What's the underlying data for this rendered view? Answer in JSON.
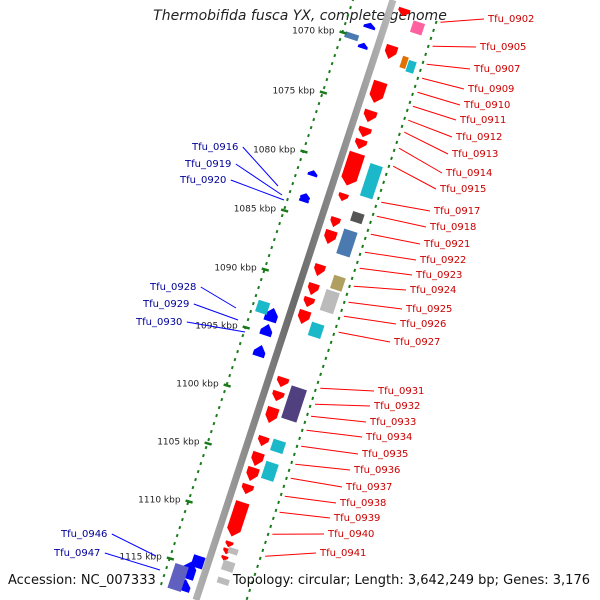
{
  "title": "Thermobifida fusca YX, complete genome",
  "accession_text": "Accession: NC_007333",
  "summary_text": "Topology: circular; Length: 3,642,249 bp; Genes: 3,176",
  "colors": {
    "backbone": "#888888",
    "tick": "#1a7a1a",
    "forward_gene": "#ff0000",
    "reverse_gene": "#0000ff",
    "right_label": "#cc0000",
    "left_label": "#000099"
  },
  "ruler_labels": [
    "1070 kbp",
    "1075 kbp",
    "1080 kbp",
    "1085 kbp",
    "1090 kbp",
    "1095 kbp",
    "1100 kbp",
    "1105 kbp",
    "1110 kbp",
    "1115 kbp"
  ],
  "right_genes": [
    "Tfu_0902",
    "Tfu_0905",
    "Tfu_0907",
    "Tfu_0909",
    "Tfu_0910",
    "Tfu_0911",
    "Tfu_0912",
    "Tfu_0913",
    "Tfu_0914",
    "Tfu_0915",
    "Tfu_0917",
    "Tfu_0918",
    "Tfu_0921",
    "Tfu_0922",
    "Tfu_0923",
    "Tfu_0924",
    "Tfu_0925",
    "Tfu_0926",
    "Tfu_0927",
    "Tfu_0931",
    "Tfu_0932",
    "Tfu_0933",
    "Tfu_0934",
    "Tfu_0935",
    "Tfu_0936",
    "Tfu_0937",
    "Tfu_0938",
    "Tfu_0939",
    "Tfu_0940",
    "Tfu_0941"
  ],
  "left_genes": [
    "Tfu_0916",
    "Tfu_0919",
    "Tfu_0920",
    "Tfu_0928",
    "Tfu_0929",
    "Tfu_0930",
    "Tfu_0946",
    "Tfu_0947"
  ]
}
